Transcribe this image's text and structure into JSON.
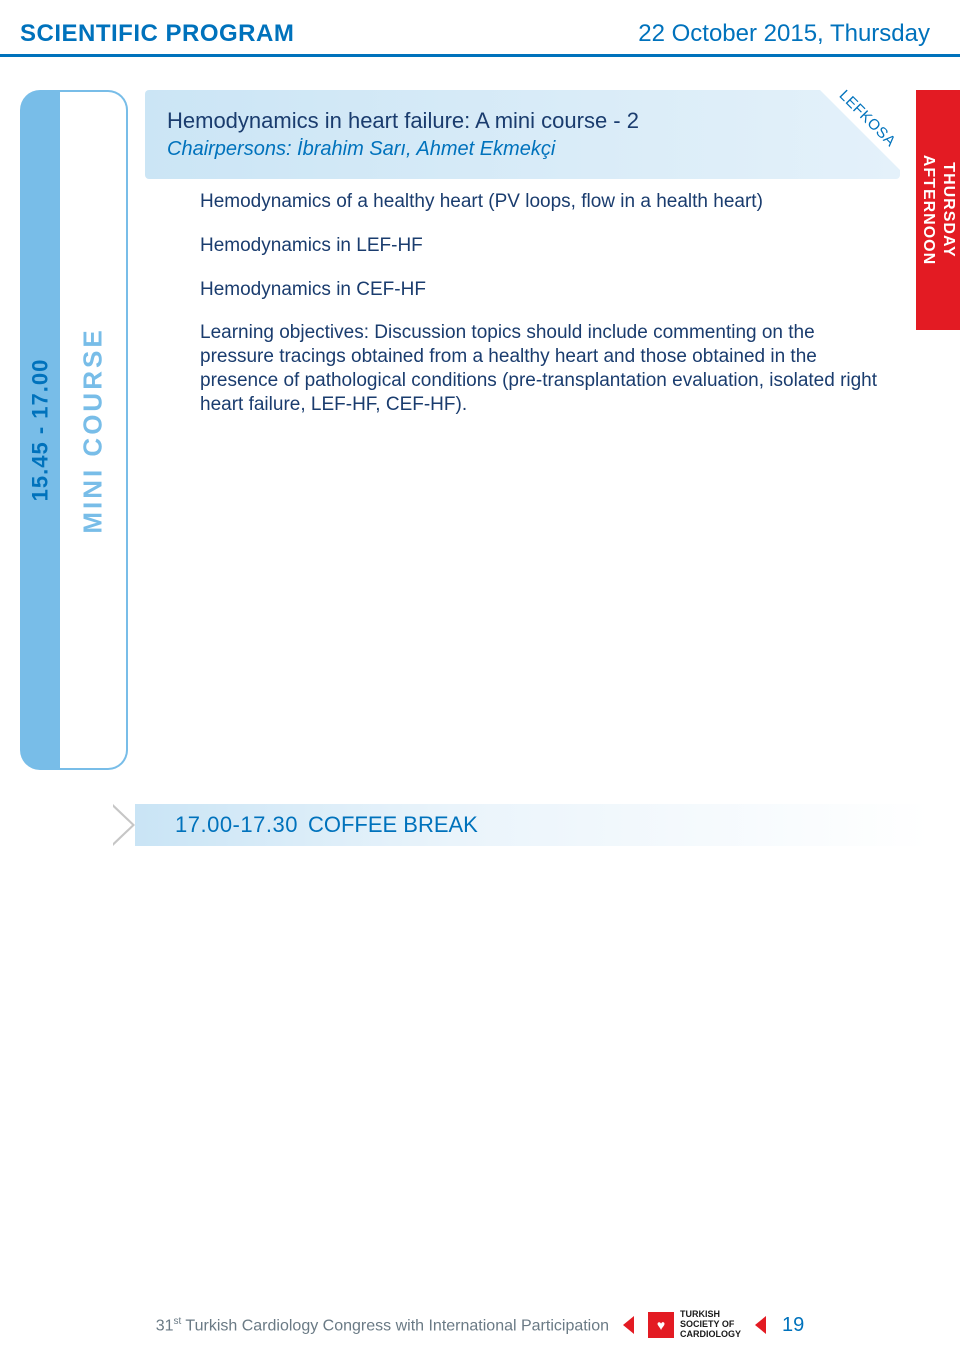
{
  "header": {
    "left": "SCIENTIFIC PROGRAM",
    "right": "22 October 2015, Thursday"
  },
  "redTab": {
    "line1": "THURSDAY",
    "line2": "AFTERNOON"
  },
  "sidebar": {
    "time": "15.45 - 17.00",
    "label": "MINI COURSE"
  },
  "session": {
    "title": "Hemodynamics in heart failure: A mini course - 2",
    "chairpersons": "Chairpersons: İbrahim Sarı, Ahmet Ekmekçi",
    "badge": "LEFKOSA"
  },
  "body": {
    "p1": "Hemodynamics of a healthy heart (PV loops, flow in a health heart)",
    "p2": "Hemodynamics in LEF-HF",
    "p3": "Hemodynamics in CEF-HF",
    "p4": "Learning objectives: Discussion topics should include commenting on the pressure tracings obtained from a healthy heart and those obtained in the presence of pathological conditions (pre-transplantation evaluation, isolated right heart failure, LEF-HF, CEF-HF)."
  },
  "break": {
    "time": "17.00-17.30",
    "label": "COFFEE BREAK"
  },
  "footer": {
    "congress_pre": "31",
    "congress_sup": "st",
    "congress_post": " Turkish Cardiology Congress with International Participation",
    "logo_line1": "TURKISH",
    "logo_line2": "SOCIETY OF",
    "logo_line3": "CARDIOLOGY",
    "page": "19"
  },
  "colors": {
    "brand_blue": "#0072bc",
    "light_blue": "#78bde8",
    "red": "#e31b23",
    "ink": "#1a3c6e"
  }
}
